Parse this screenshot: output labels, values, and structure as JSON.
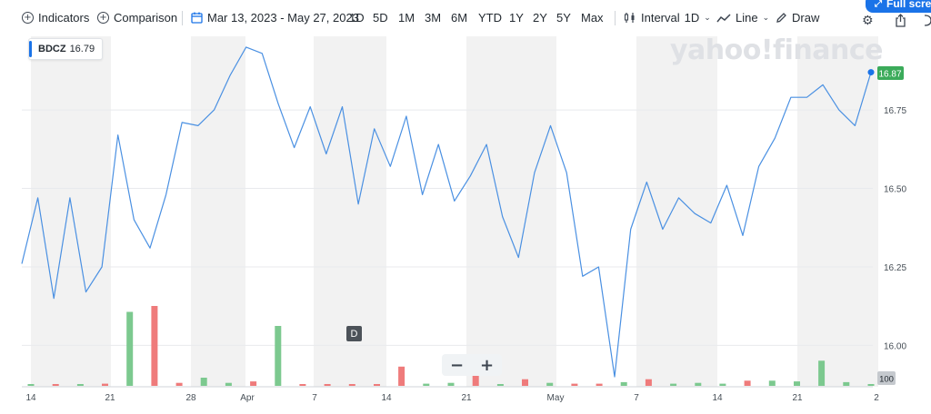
{
  "toolbar": {
    "indicators_label": "Indicators",
    "comparison_label": "Comparison",
    "date_range": "Mar 13, 2023 - May 27, 2023",
    "ranges": [
      "1D",
      "5D",
      "1M",
      "3M",
      "6M",
      "YTD",
      "1Y",
      "2Y",
      "5Y",
      "Max"
    ],
    "interval_label": "Interval",
    "interval_value": "1D",
    "chart_type_label": "Line",
    "draw_label": "Draw",
    "fullscreen_label": "Full screen"
  },
  "badge": {
    "symbol": "BDCZ",
    "value": "16.79"
  },
  "watermark": "yahoo!finance",
  "dividend_marker": "D",
  "zoom": {
    "minus": "−",
    "plus": "+"
  },
  "price_label": "16.87",
  "volume_label": "100",
  "colors": {
    "line": "#4a90e2",
    "up": "#7cc98f",
    "down": "#ef7b7b",
    "accent": "#1a73e8",
    "price_label": "#3bab5a",
    "shade": "#f2f2f2"
  },
  "chart_data": {
    "type": "line",
    "title": "",
    "ylim": [
      15.9,
      16.97
    ],
    "y_ticks": [
      16.0,
      16.25,
      16.5,
      16.75
    ],
    "y_tick_labels": [
      "16.00",
      "16.25",
      "16.50",
      "16.75"
    ],
    "x_tick_labels": [
      "14",
      "21",
      "28",
      "Apr",
      "7",
      "14",
      "21",
      "May",
      "7",
      "14",
      "21",
      "2"
    ],
    "series": [
      {
        "values": [
          16.26,
          16.47,
          16.15,
          16.47,
          16.17,
          16.25,
          16.67,
          16.4,
          16.31,
          16.48,
          16.71,
          16.7,
          16.75,
          16.86,
          16.95,
          16.93,
          16.77,
          16.63,
          16.76,
          16.61,
          16.76,
          16.45,
          16.69,
          16.57,
          16.73,
          16.48,
          16.64,
          16.46,
          16.54,
          16.64,
          16.41,
          16.28,
          16.55,
          16.7,
          16.55,
          16.22,
          16.25,
          15.9,
          16.37,
          16.52,
          16.37,
          16.47,
          16.42,
          16.39,
          16.51,
          16.35,
          16.57,
          16.66,
          16.79,
          16.79,
          16.83,
          16.75,
          16.7,
          16.87
        ]
      }
    ],
    "volume": [
      {
        "up": true,
        "v": 0.02
      },
      {
        "up": false,
        "v": 0.02
      },
      {
        "up": true,
        "v": 0.02
      },
      {
        "up": false,
        "v": 0.03
      },
      {
        "up": true,
        "v": 1.0
      },
      {
        "up": false,
        "v": 1.08
      },
      {
        "up": false,
        "v": 0.04
      },
      {
        "up": true,
        "v": 0.11
      },
      {
        "up": true,
        "v": 0.04
      },
      {
        "up": false,
        "v": 0.06
      },
      {
        "up": true,
        "v": 0.81
      },
      {
        "up": false,
        "v": 0.02
      },
      {
        "up": false,
        "v": 0.02
      },
      {
        "up": false,
        "v": 0.02
      },
      {
        "up": false,
        "v": 0.02
      },
      {
        "up": false,
        "v": 0.26
      },
      {
        "up": true,
        "v": 0.03
      },
      {
        "up": true,
        "v": 0.04
      },
      {
        "up": false,
        "v": 0.27
      },
      {
        "up": true,
        "v": 0.02
      },
      {
        "up": false,
        "v": 0.09
      },
      {
        "up": true,
        "v": 0.04
      },
      {
        "up": false,
        "v": 0.03
      },
      {
        "up": false,
        "v": 0.03
      },
      {
        "up": true,
        "v": 0.05
      },
      {
        "up": false,
        "v": 0.09
      },
      {
        "up": true,
        "v": 0.03
      },
      {
        "up": true,
        "v": 0.04
      },
      {
        "up": true,
        "v": 0.03
      },
      {
        "up": false,
        "v": 0.07
      },
      {
        "up": true,
        "v": 0.07
      },
      {
        "up": true,
        "v": 0.06
      },
      {
        "up": true,
        "v": 0.34
      },
      {
        "up": true,
        "v": 0.05
      },
      {
        "up": true,
        "v": 0.02
      }
    ]
  }
}
